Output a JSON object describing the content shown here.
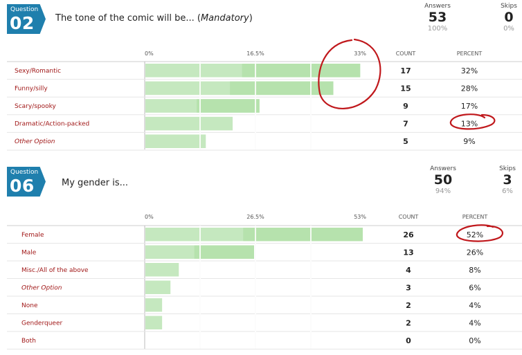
{
  "questions": [
    {
      "badge_label": "Question",
      "number": "02",
      "title": "The tone of the comic will be... (",
      "title_em": "Mandatory",
      "title_end": ")",
      "answers_label": "Answers",
      "answers_count": "53",
      "answers_pct": "100%",
      "skips_label": "Skips",
      "skips_count": "0",
      "skips_pct": "0%",
      "count_header": "COUNT",
      "percent_header": "PERCENT"
    },
    {
      "badge_label": "Question",
      "number": "06",
      "title": "My gender is...",
      "title_em": "",
      "title_end": "",
      "answers_label": "Answers",
      "answers_count": "50",
      "answers_pct": "94%",
      "skips_label": "Skips",
      "skips_count": "3",
      "skips_pct": "6%",
      "count_header": "COUNT",
      "percent_header": "PERCENT"
    }
  ],
  "chart_data": [
    {
      "type": "bar",
      "orientation": "horizontal",
      "categories": [
        "Sexy/Romantic",
        "Funny/silly",
        "Scary/spooky",
        "Dramatic/Action-packed",
        "Other Option"
      ],
      "italic_categories": [
        "Other Option"
      ],
      "counts": [
        17,
        15,
        9,
        7,
        5
      ],
      "percent_labels": [
        "32%",
        "28%",
        "17%",
        "13%",
        "9%"
      ],
      "values": [
        32,
        28,
        17,
        13,
        9
      ],
      "ticks": [
        "0%",
        "16.5%",
        "33%"
      ],
      "xlim": [
        0,
        33
      ],
      "bar_color": "#c5e8bf",
      "annotations": [
        "hand-drawn circle around top of Sexy/Romantic and Funny/silly bars near 33%",
        "hand-drawn circle around 13%"
      ]
    },
    {
      "type": "bar",
      "orientation": "horizontal",
      "categories": [
        "Female",
        "Male",
        "Misc./All of the above",
        "Other Option",
        "None",
        "Genderqueer",
        "Both"
      ],
      "italic_categories": [
        "Other Option"
      ],
      "counts": [
        26,
        13,
        4,
        3,
        2,
        2,
        0
      ],
      "percent_labels": [
        "52%",
        "26%",
        "8%",
        "6%",
        "4%",
        "4%",
        "0%"
      ],
      "values": [
        52,
        26,
        8,
        6,
        4,
        4,
        0
      ],
      "ticks": [
        "0%",
        "26.5%",
        "53%"
      ],
      "xlim": [
        0,
        53
      ],
      "bar_color": "#c5e8bf",
      "annotations": [
        "hand-drawn circle around 52%"
      ]
    }
  ],
  "colors": {
    "badge": "#1f7fad",
    "label": "#a01717",
    "bar": "#c5e8bf",
    "bar_hover": "#a9dc9f",
    "annotation": "#c0181c",
    "grid": "#dddddd"
  }
}
